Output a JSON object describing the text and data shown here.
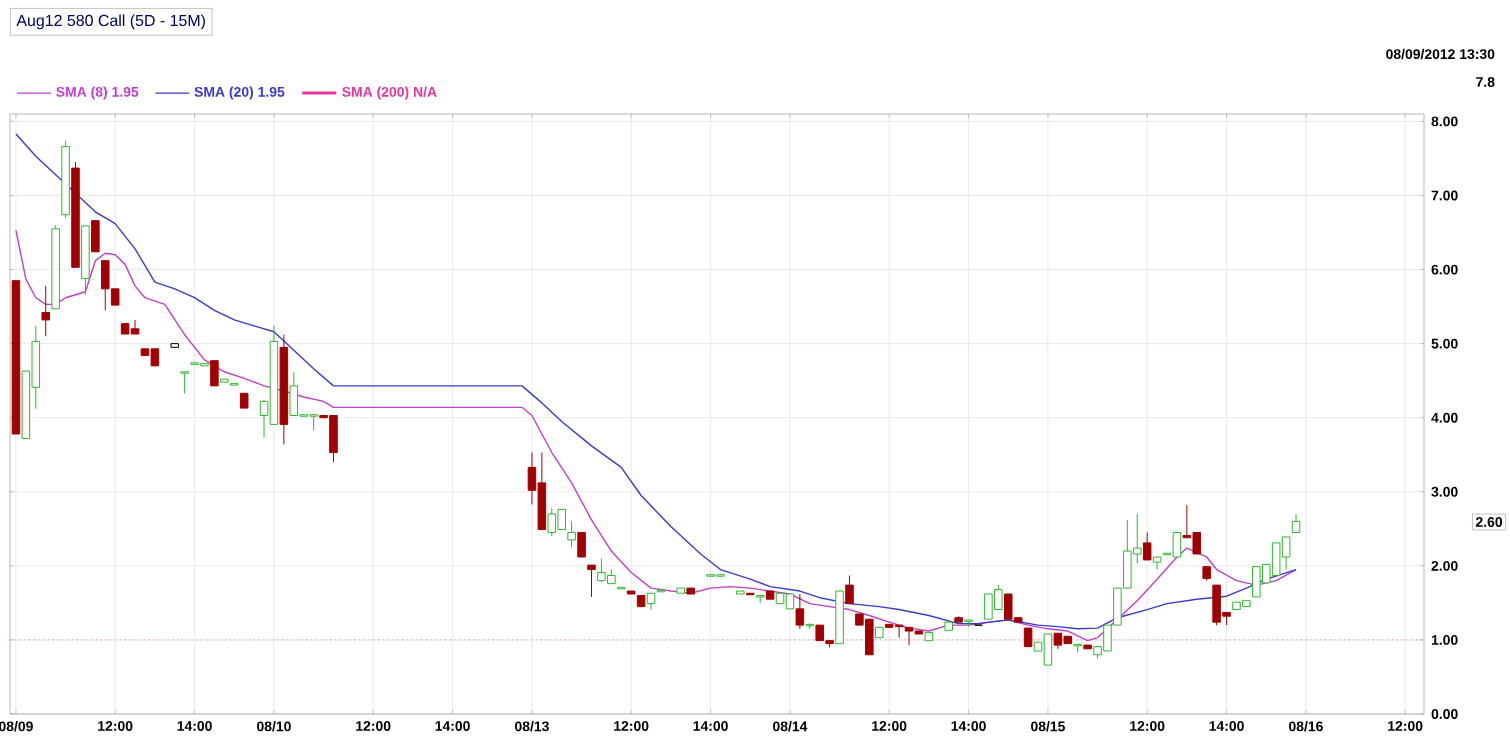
{
  "chart_data": {
    "type": "candlestick",
    "title": "Aug12 580 Call (5D - 15M)",
    "categories": [
      "08/09",
      null,
      null,
      null,
      null,
      null,
      null,
      null,
      null,
      null,
      "12:00",
      null,
      null,
      null,
      null,
      null,
      null,
      null,
      "14:00",
      null,
      null,
      null,
      null,
      null,
      null,
      null,
      "08/10",
      null,
      null,
      null,
      null,
      null,
      null,
      null,
      null,
      null,
      "12:00",
      null,
      null,
      null,
      null,
      null,
      null,
      null,
      "14:00",
      null,
      null,
      null,
      null,
      null,
      null,
      null,
      "08/13",
      null,
      null,
      null,
      null,
      null,
      null,
      null,
      null,
      null,
      "12:00",
      null,
      null,
      null,
      null,
      null,
      null,
      null,
      "14:00",
      null,
      null,
      null,
      null,
      null,
      null,
      null,
      "08/14",
      null,
      null,
      null,
      null,
      null,
      null,
      null,
      null,
      null,
      "12:00",
      null,
      null,
      null,
      null,
      null,
      null,
      null,
      "14:00",
      null,
      null,
      null,
      null,
      null,
      null,
      null,
      "08/15",
      null,
      null,
      null,
      null,
      null,
      null,
      null,
      null,
      null,
      "12:00",
      null,
      null,
      null,
      null,
      null,
      null,
      null,
      "14:00",
      null,
      null,
      null,
      null,
      null,
      null,
      null,
      "08/16",
      null,
      null,
      null,
      null,
      null,
      null,
      null,
      null,
      null,
      "12:00"
    ],
    "ohlc": [
      [
        5.85,
        5.85,
        3.78,
        3.78
      ],
      [
        3.72,
        4.63,
        3.72,
        4.63
      ],
      [
        4.41,
        5.24,
        4.12,
        5.03
      ],
      [
        5.42,
        5.78,
        5.1,
        5.32
      ],
      [
        5.47,
        6.6,
        5.47,
        6.55
      ],
      [
        6.74,
        7.74,
        6.7,
        7.66
      ],
      [
        7.37,
        7.45,
        6.03,
        6.03
      ],
      [
        5.88,
        6.59,
        5.66,
        6.59
      ],
      [
        6.66,
        6.66,
        6.24,
        6.24
      ],
      [
        6.12,
        6.12,
        5.45,
        5.74
      ],
      [
        5.74,
        5.74,
        5.52,
        5.52
      ],
      [
        5.27,
        5.27,
        5.13,
        5.13
      ],
      [
        5.2,
        5.32,
        5.13,
        5.13
      ],
      [
        4.93,
        4.93,
        4.84,
        4.84
      ],
      [
        4.93,
        4.93,
        4.7,
        4.7
      ],
      null,
      [
        4.95,
        5.0,
        4.95,
        5.0
      ],
      [
        4.6,
        4.62,
        4.33,
        4.62
      ],
      [
        4.72,
        4.75,
        4.72,
        4.74
      ],
      [
        4.7,
        4.73,
        4.7,
        4.73
      ],
      [
        4.77,
        4.77,
        4.43,
        4.43
      ],
      [
        4.48,
        4.52,
        4.48,
        4.52
      ],
      [
        4.44,
        4.46,
        4.44,
        4.46
      ],
      [
        4.33,
        4.33,
        4.13,
        4.13
      ],
      null,
      [
        4.03,
        4.24,
        3.73,
        4.22
      ],
      [
        3.91,
        5.24,
        3.91,
        5.03
      ],
      [
        4.95,
        5.12,
        3.64,
        3.91
      ],
      [
        4.03,
        4.62,
        4.03,
        4.43
      ],
      [
        4.02,
        4.04,
        4.02,
        4.04
      ],
      [
        4.02,
        4.04,
        3.83,
        4.04
      ],
      [
        4.03,
        4.03,
        4.0,
        4.0
      ],
      [
        4.03,
        4.03,
        3.4,
        3.53
      ],
      null,
      null,
      null,
      null,
      null,
      null,
      null,
      null,
      null,
      null,
      null,
      null,
      null,
      null,
      null,
      null,
      null,
      null,
      null,
      [
        3.33,
        3.53,
        2.83,
        3.02
      ],
      [
        3.12,
        3.53,
        2.49,
        2.49
      ],
      [
        2.45,
        2.78,
        2.4,
        2.7
      ],
      [
        2.49,
        2.76,
        2.49,
        2.76
      ],
      [
        2.35,
        2.6,
        2.25,
        2.45
      ],
      [
        2.45,
        2.45,
        2.12,
        2.12
      ],
      [
        2.01,
        2.01,
        1.58,
        1.95
      ],
      [
        1.8,
        2.1,
        1.78,
        1.91
      ],
      [
        1.76,
        1.95,
        1.76,
        1.87
      ],
      [
        1.69,
        1.71,
        1.69,
        1.71
      ],
      [
        1.66,
        1.66,
        1.62,
        1.62
      ],
      [
        1.6,
        1.6,
        1.45,
        1.45
      ],
      [
        1.49,
        1.63,
        1.41,
        1.63
      ],
      [
        1.65,
        1.67,
        1.65,
        1.67
      ],
      null,
      [
        1.63,
        1.7,
        1.63,
        1.7
      ],
      [
        1.7,
        1.7,
        1.62,
        1.62
      ],
      null,
      [
        1.86,
        1.88,
        1.86,
        1.88
      ],
      [
        1.86,
        1.88,
        1.86,
        1.88
      ],
      null,
      [
        1.62,
        1.66,
        1.62,
        1.66
      ],
      [
        1.63,
        1.63,
        1.61,
        1.61
      ],
      [
        1.58,
        1.6,
        1.5,
        1.6
      ],
      [
        1.66,
        1.66,
        1.55,
        1.55
      ],
      [
        1.49,
        1.63,
        1.49,
        1.63
      ],
      [
        1.42,
        1.62,
        1.42,
        1.62
      ],
      [
        1.42,
        1.62,
        1.15,
        1.2
      ],
      [
        1.19,
        1.22,
        1.15,
        1.21
      ],
      [
        1.2,
        1.2,
        0.99,
        0.99
      ],
      [
        0.99,
        0.99,
        0.9,
        0.95
      ],
      [
        0.95,
        1.66,
        0.95,
        1.66
      ],
      [
        1.74,
        1.87,
        1.49,
        1.49
      ],
      [
        1.35,
        1.35,
        1.2,
        1.2
      ],
      [
        1.28,
        1.28,
        0.8,
        0.8
      ],
      [
        1.03,
        1.17,
        1.03,
        1.17
      ],
      [
        1.21,
        1.21,
        1.17,
        1.17
      ],
      [
        1.2,
        1.2,
        1.03,
        1.18
      ],
      [
        1.17,
        1.17,
        0.93,
        1.12
      ],
      [
        1.12,
        1.12,
        1.08,
        1.08
      ],
      [
        0.99,
        1.1,
        0.99,
        1.1
      ],
      null,
      [
        1.13,
        1.24,
        1.13,
        1.24
      ],
      [
        1.3,
        1.32,
        1.24,
        1.24
      ],
      [
        1.25,
        1.27,
        1.18,
        1.27
      ],
      [
        1.2,
        1.2,
        1.2,
        1.2
      ],
      [
        1.28,
        1.62,
        1.28,
        1.62
      ],
      [
        1.41,
        1.74,
        1.41,
        1.68
      ],
      [
        1.62,
        1.62,
        1.28,
        1.28
      ],
      [
        1.3,
        1.3,
        1.24,
        1.24
      ],
      [
        1.16,
        1.16,
        0.91,
        0.91
      ],
      [
        0.85,
        0.97,
        0.85,
        0.97
      ],
      [
        0.66,
        1.08,
        0.66,
        1.08
      ],
      [
        1.09,
        1.09,
        0.88,
        0.93
      ],
      [
        1.05,
        1.05,
        0.95,
        0.95
      ],
      [
        0.92,
        0.94,
        0.83,
        0.94
      ],
      [
        0.93,
        0.93,
        0.88,
        0.88
      ],
      [
        0.8,
        0.91,
        0.75,
        0.91
      ],
      [
        0.85,
        1.2,
        0.85,
        1.2
      ],
      [
        1.2,
        1.7,
        1.2,
        1.7
      ],
      [
        1.7,
        2.62,
        1.7,
        2.2
      ],
      [
        2.16,
        2.7,
        2.03,
        2.24
      ],
      [
        2.31,
        2.45,
        2.08,
        2.08
      ],
      [
        2.05,
        2.12,
        1.95,
        2.12
      ],
      [
        2.15,
        2.17,
        2.15,
        2.17
      ],
      [
        2.12,
        2.45,
        2.12,
        2.45
      ],
      [
        2.41,
        2.82,
        2.38,
        2.38
      ],
      [
        2.45,
        2.45,
        2.16,
        2.16
      ],
      [
        1.99,
        1.99,
        1.8,
        1.83
      ],
      [
        1.74,
        1.74,
        1.2,
        1.24
      ],
      [
        1.37,
        1.37,
        1.2,
        1.32
      ],
      [
        1.41,
        1.51,
        1.41,
        1.51
      ],
      [
        1.45,
        1.53,
        1.45,
        1.53
      ],
      [
        1.58,
        1.99,
        1.58,
        1.99
      ],
      [
        1.77,
        2.02,
        1.77,
        2.02
      ],
      [
        1.87,
        2.31,
        1.87,
        2.31
      ],
      [
        2.12,
        2.39,
        1.95,
        2.39
      ],
      [
        2.45,
        2.7,
        2.45,
        2.6
      ],
      null,
      null,
      null,
      null,
      null,
      null,
      null,
      null,
      null,
      null,
      null
    ],
    "colors": [
      "#a00000",
      "#2db82d",
      "#2db82d",
      "#a00000",
      "#2db82d",
      "#2db82d",
      "#a00000",
      "#2db82d",
      "#a00000",
      "#a00000",
      "#a00000",
      "#a00000",
      "#a00000",
      "#a00000",
      "#a00000",
      null,
      "#000000",
      "#2db82d",
      "#2db82d",
      "#2db82d",
      "#a00000",
      "#2db82d",
      "#2db82d",
      "#a00000",
      null,
      "#2db82d",
      "#2db82d",
      "#a00000",
      "#2db82d",
      "#2db82d",
      "#2db82d",
      "#a00000",
      "#a00000",
      null,
      null,
      null,
      null,
      null,
      null,
      null,
      null,
      null,
      null,
      null,
      null,
      null,
      null,
      null,
      null,
      null,
      null,
      null,
      "#a00000",
      "#a00000",
      "#2db82d",
      "#2db82d",
      "#2db82d",
      "#a00000",
      "#a00000",
      "#2db82d",
      "#2db82d",
      "#2db82d",
      "#a00000",
      "#a00000",
      "#2db82d",
      "#2db82d",
      null,
      "#2db82d",
      "#a00000",
      null,
      "#2db82d",
      "#2db82d",
      null,
      "#2db82d",
      "#a00000",
      "#2db82d",
      "#a00000",
      "#2db82d",
      "#2db82d",
      "#a00000",
      "#2db82d",
      "#a00000",
      "#a00000",
      "#2db82d",
      "#a00000",
      "#a00000",
      "#a00000",
      "#2db82d",
      "#a00000",
      "#a00000",
      "#a00000",
      "#a00000",
      "#2db82d",
      null,
      "#2db82d",
      "#a00000",
      "#2db82d",
      "#000000",
      "#2db82d",
      "#2db82d",
      "#a00000",
      "#a00000",
      "#a00000",
      "#2db82d",
      "#2db82d",
      "#a00000",
      "#a00000",
      "#2db82d",
      "#a00000",
      "#2db82d",
      "#2db82d",
      "#2db82d",
      "#2db82d",
      "#2db82d",
      "#a00000",
      "#2db82d",
      "#2db82d",
      "#2db82d",
      "#a00000",
      "#a00000",
      "#a00000",
      "#a00000",
      "#a00000",
      "#2db82d",
      "#2db82d",
      "#2db82d",
      "#2db82d",
      "#2db82d",
      "#2db82d",
      "#2db82d",
      null,
      null,
      null,
      null,
      null,
      null,
      null,
      null,
      null,
      null,
      null
    ],
    "series": [
      {
        "name": "SMA (8) 1.95",
        "type": "line",
        "color": "#c040c8",
        "values": [
          6.53,
          5.87,
          5.62,
          5.53,
          5.53,
          5.62,
          5.66,
          5.7,
          6.12,
          6.22,
          6.2,
          6.07,
          5.78,
          5.62,
          null,
          5.53,
          null,
          5.12,
          null,
          4.78,
          null,
          4.62,
          null,
          4.53,
          null,
          4.43,
          null,
          4.36,
          null,
          4.28,
          null,
          4.22,
          4.14,
          4.14,
          4.14,
          4.14,
          4.14,
          4.14,
          4.14,
          4.14,
          4.14,
          4.14,
          4.14,
          4.14,
          4.14,
          4.14,
          4.14,
          4.14,
          4.14,
          4.14,
          4.14,
          4.14,
          4.03,
          null,
          3.53,
          null,
          3.12,
          null,
          2.62,
          null,
          2.2,
          null,
          1.91,
          null,
          1.7,
          null,
          1.66,
          null,
          1.63,
          null,
          1.7,
          null,
          1.72,
          null,
          1.7,
          null,
          1.66,
          null,
          1.62,
          null,
          1.49,
          null,
          1.45,
          null,
          1.41,
          null,
          1.33,
          null,
          1.24,
          null,
          1.16,
          null,
          1.12,
          null,
          1.2,
          null,
          1.2,
          null,
          1.24,
          null,
          1.27,
          null,
          1.2,
          null,
          1.15,
          null,
          1.12,
          null,
          0.99,
          1.03,
          null,
          1.28,
          null,
          1.53,
          null,
          1.82,
          null,
          2.12,
          2.24,
          null,
          2.12,
          1.95,
          null,
          1.8,
          null,
          1.74,
          null,
          1.8,
          null,
          1.95,
          null,
          null,
          null,
          null,
          null,
          null,
          null,
          null,
          null,
          null,
          null
        ]
      },
      {
        "name": "SMA (20) 1.95",
        "type": "line",
        "color": "#3a3ad0",
        "values": [
          7.83,
          null,
          7.53,
          null,
          7.28,
          null,
          7.03,
          null,
          6.78,
          null,
          6.62,
          null,
          6.28,
          null,
          5.83,
          null,
          5.74,
          null,
          5.62,
          null,
          5.45,
          null,
          5.32,
          null,
          5.24,
          null,
          5.16,
          null,
          4.91,
          null,
          4.66,
          null,
          4.43,
          4.43,
          4.43,
          4.43,
          4.43,
          4.43,
          4.43,
          4.43,
          4.43,
          4.43,
          4.43,
          4.43,
          4.43,
          4.43,
          4.43,
          4.43,
          4.43,
          4.43,
          4.43,
          4.43,
          null,
          4.2,
          null,
          3.95,
          null,
          null,
          3.62,
          null,
          null,
          3.33,
          null,
          2.95,
          null,
          null,
          2.53,
          null,
          null,
          2.16,
          null,
          1.95,
          null,
          null,
          1.82,
          null,
          1.72,
          null,
          null,
          1.66,
          null,
          1.57,
          null,
          null,
          1.49,
          null,
          null,
          1.45,
          null,
          1.41,
          null,
          null,
          1.33,
          null,
          null,
          1.22,
          null,
          1.22,
          null,
          null,
          1.27,
          null,
          null,
          1.2,
          null,
          1.18,
          null,
          1.15,
          null,
          1.16,
          null,
          1.3,
          null,
          null,
          1.41,
          null,
          1.49,
          null,
          null,
          1.55,
          null,
          null,
          1.59,
          null,
          1.7,
          null,
          1.82,
          null,
          null,
          1.95,
          null,
          null,
          null,
          null,
          null,
          null,
          null,
          null,
          null,
          null,
          null
        ]
      },
      {
        "name": "SMA (200) N/A",
        "type": "line",
        "color": "#e8359a",
        "values": [
          null,
          null,
          null,
          null,
          null,
          null,
          null,
          null,
          null,
          null,
          null,
          null,
          null,
          null,
          null,
          null,
          null,
          null,
          null,
          null,
          null,
          null,
          null,
          null,
          null,
          null,
          null,
          null,
          null,
          null,
          null,
          null,
          null,
          null,
          null,
          null,
          null,
          null,
          null,
          null,
          null,
          null,
          null,
          null,
          null,
          null,
          null,
          null,
          null,
          null,
          null,
          null,
          null,
          null,
          null,
          null,
          null,
          null,
          null,
          null,
          null,
          null,
          null,
          null,
          null,
          null,
          null,
          null,
          null,
          null,
          null,
          null,
          null,
          null,
          null,
          null,
          null,
          null,
          null,
          null,
          null,
          null,
          null,
          null,
          null,
          null,
          null,
          null,
          null,
          null,
          null,
          null,
          null,
          null,
          null,
          null,
          null,
          null,
          null,
          null,
          null,
          null,
          null,
          null,
          null,
          null,
          null,
          null,
          null,
          null,
          null,
          null,
          null,
          null,
          null,
          null,
          null,
          null,
          null,
          null,
          null,
          null,
          null,
          null,
          null,
          null,
          null,
          null,
          null,
          null,
          null,
          null,
          null,
          null,
          null,
          null,
          null,
          null,
          null,
          null,
          null
        ]
      }
    ],
    "ylim": [
      0,
      8.1
    ],
    "yticks": [
      {
        "value": 0,
        "label": "0.00"
      },
      {
        "value": 1,
        "label": "1.00"
      },
      {
        "value": 2,
        "label": "2.00"
      },
      {
        "value": 3,
        "label": "3.00"
      },
      {
        "value": 4,
        "label": "4.00"
      },
      {
        "value": 5,
        "label": "5.00"
      },
      {
        "value": 6,
        "label": "6.00"
      },
      {
        "value": 7,
        "label": "7.00"
      },
      {
        "value": 8,
        "label": "8.00"
      }
    ],
    "grid": true,
    "legend": "top left",
    "ref_lines": [
      {
        "axis": "y",
        "value": 1,
        "color": "#e03030",
        "line_style": "dotted"
      }
    ],
    "annotations": [
      "08/09/2012 13:30",
      "7.8",
      "2.60"
    ]
  }
}
